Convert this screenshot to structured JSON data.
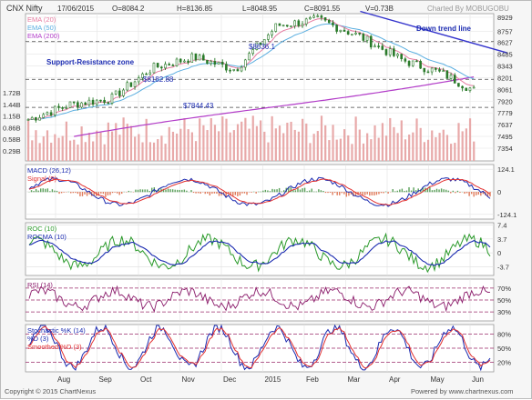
{
  "header": {
    "symbol": "CNX Nifty",
    "date": "17/06/2015",
    "open": "O=8084.2",
    "high": "H=8136.85",
    "low": "L=8048.95",
    "close": "C=8091.55",
    "volume": "V=0.73B",
    "credit": "Charted By MOBUGOBU"
  },
  "footer": {
    "copyright": "Copyright © 2015 ChartNexus",
    "powered": "Powered by www.chartnexus.com"
  },
  "colors": {
    "ema20": "#e67aa0",
    "ema50": "#5aaee0",
    "ema200": "#b23cc8",
    "candle": "#2a7a2a",
    "volume": "#e8a9a9",
    "trend": "#3333cc",
    "macd": "#1a2ab0",
    "signal": "#e23030",
    "histogram": "#e07a5a",
    "roc": "#2a9a2a",
    "rocma": "#1a2ab0",
    "rsi": "#8a1a6a",
    "stoch_k": "#1a2ab0",
    "stoch_d": "#e23030",
    "hline": "#9a2a6a"
  },
  "chart_data": [
    {
      "type": "line",
      "panel": "price",
      "legend": [
        {
          "label": "EMA (20)",
          "color": "#e67aa0"
        },
        {
          "label": "EMA (50)",
          "color": "#5aaee0"
        },
        {
          "label": "EMA (200)",
          "color": "#b23cc8"
        }
      ],
      "x_tick_labels": [
        "Aug",
        "Sep",
        "Oct",
        "Nov",
        "Dec",
        "2015",
        "Feb",
        "Mar",
        "Apr",
        "May",
        "Jun"
      ],
      "y_tick_labels": [
        "8929",
        "8757",
        "8627",
        "8485",
        "8343",
        "8201",
        "8061",
        "7920",
        "7779",
        "7637",
        "7495",
        "7354"
      ],
      "volume_tick_labels": [
        "1.72B",
        "1.44B",
        "1.15B",
        "0.86B",
        "0.58B",
        "0.29B"
      ],
      "ylim": [
        7354,
        8929
      ],
      "months": [
        0,
        1,
        2,
        3,
        4,
        5,
        6,
        7,
        8,
        9,
        10,
        10.75
      ],
      "close": [
        7700,
        7880,
        7950,
        8320,
        8450,
        8300,
        8830,
        8900,
        8700,
        8420,
        8250,
        8050
      ],
      "annotations": [
        {
          "text": "$8636.1",
          "value": 8636.1
        },
        {
          "text": "$8182.88",
          "value": 8182.88
        },
        {
          "text": "$7844.43",
          "value": 7844.43
        },
        {
          "text": "Support-Resistance zone",
          "value": 8560
        },
        {
          "text": "Down trend line",
          "value": 8860
        }
      ],
      "trend_line": {
        "from": [
          7.35,
          9000
        ],
        "to": [
          10.9,
          8500
        ]
      }
    },
    {
      "type": "line",
      "panel": "macd",
      "legend": [
        {
          "label": "MACD (26,12)",
          "color": "#1a2ab0"
        },
        {
          "label": "Signal (9)",
          "color": "#e23030"
        }
      ],
      "y_tick_labels": [
        "124.1",
        "0",
        "-124.1"
      ],
      "ylim": [
        -150,
        150
      ]
    },
    {
      "type": "line",
      "panel": "roc",
      "legend": [
        {
          "label": "ROC (10)",
          "color": "#2a9a2a"
        },
        {
          "label": "ROCMA (10)",
          "color": "#1a2ab0"
        }
      ],
      "y_tick_labels": [
        "7.4",
        "3.7",
        "0",
        "-3.7"
      ],
      "ylim": [
        -6,
        8
      ]
    },
    {
      "type": "line",
      "panel": "rsi",
      "legend": [
        {
          "label": "RSI (14)",
          "color": "#8a1a6a"
        }
      ],
      "y_tick_labels": [
        "70%",
        "50%",
        "30%"
      ],
      "ylim": [
        15,
        85
      ]
    },
    {
      "type": "line",
      "panel": "stochastic",
      "legend": [
        {
          "label": "Stochastic %K (14)",
          "color": "#1a2ab0"
        },
        {
          "label": "%D (3)",
          "color": "#1a2ab0"
        },
        {
          "label": "Smoothed %D (3)",
          "color": "#e23030"
        }
      ],
      "y_tick_labels": [
        "80%",
        "50%",
        "20%"
      ],
      "ylim": [
        0,
        100
      ]
    }
  ]
}
